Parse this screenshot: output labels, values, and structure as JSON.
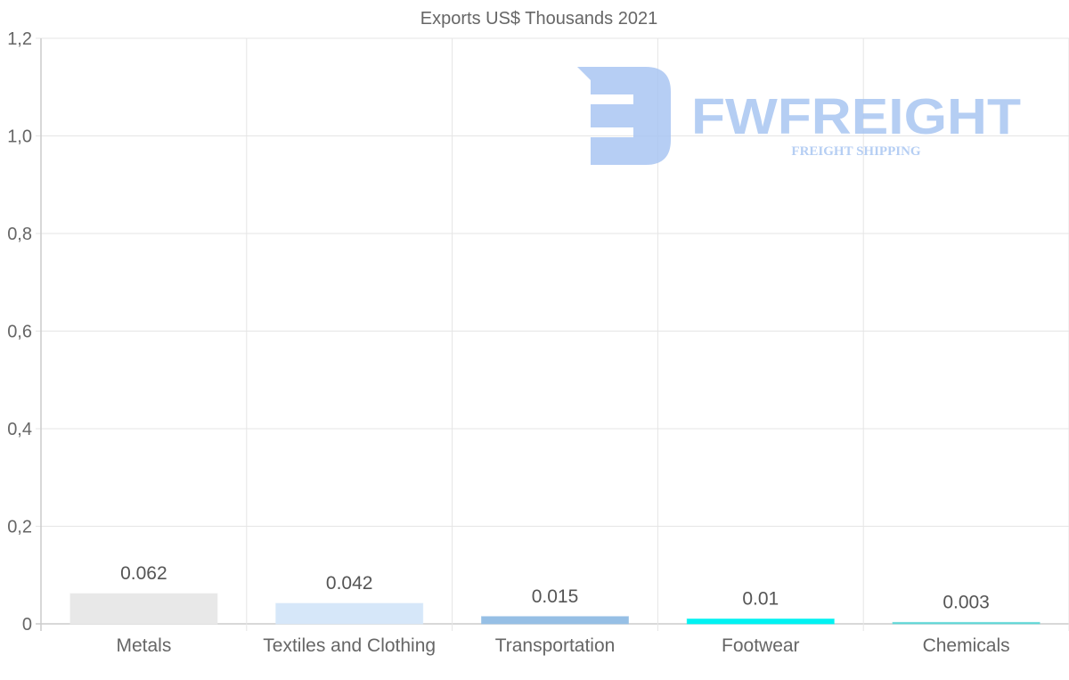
{
  "chart_data": {
    "type": "bar",
    "title": "Exports US$ Thousands 2021",
    "categories": [
      "Metals",
      "Textiles and Clothing",
      "Transportation",
      "Footwear",
      "Chemicals"
    ],
    "values": [
      0.062,
      0.042,
      0.015,
      0.01,
      0.003
    ],
    "value_labels": [
      "0.062",
      "0.042",
      "0.015",
      "0.01",
      "0.003"
    ],
    "colors": [
      "#e8e8e8",
      "#d6e7f9",
      "#96bfe5",
      "#00f2f2",
      "#5fd6d6"
    ],
    "xlabel": "",
    "ylabel": "",
    "ylim": [
      0,
      1.2
    ],
    "yticks": [
      0,
      0.2,
      0.4,
      0.6,
      0.8,
      1.0,
      1.2
    ],
    "ytick_labels": [
      "0",
      "0,2",
      "0,4",
      "0,6",
      "0,8",
      "1,0",
      "1,2"
    ],
    "grid": true,
    "legend": "none"
  },
  "watermark": {
    "brand": "FWFREIGHT",
    "tagline": "FREIGHT SHIPPING",
    "color": "#a9c6f2"
  }
}
